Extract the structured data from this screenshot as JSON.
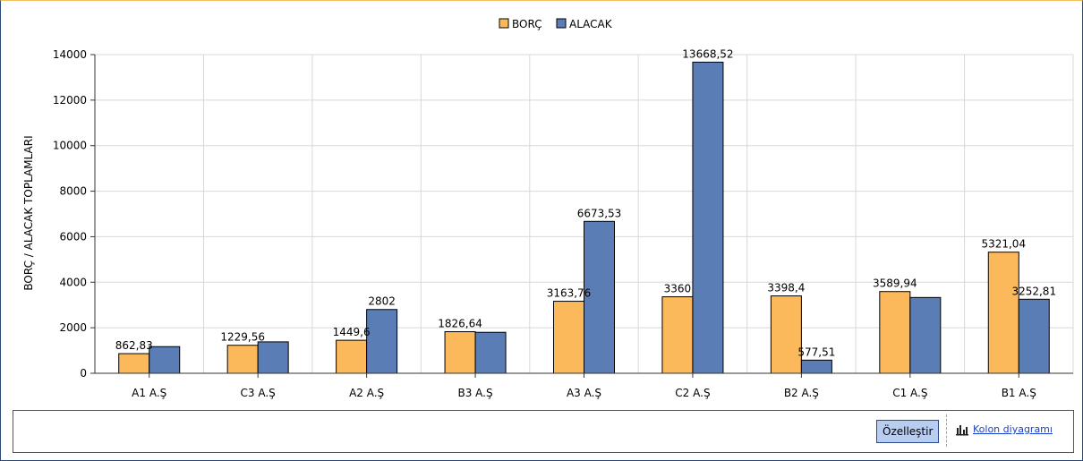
{
  "chart_data": {
    "type": "bar",
    "categories": [
      "A1 A.Ş",
      "C3 A.Ş",
      "A2 A.Ş",
      "B3 A.Ş",
      "A3 A.Ş",
      "C2 A.Ş",
      "B2 A.Ş",
      "C1 A.Ş",
      "B1 A.Ş"
    ],
    "series": [
      {
        "name": "BORÇ",
        "color": "#fbb95c",
        "values": [
          862.83,
          1229.56,
          1449.6,
          1826.64,
          3163.76,
          3360,
          3398.4,
          3589.94,
          5321.04
        ],
        "labels": [
          "862,83",
          "1229,56",
          "1449,6",
          "1826,64",
          "3163,76",
          "3360",
          "3398,4",
          "3589,94",
          "5321,04"
        ]
      },
      {
        "name": "ALACAK",
        "color": "#5b7db5",
        "values": [
          1170,
          1380,
          2802,
          1800,
          6673.53,
          13668.52,
          577.51,
          3330,
          3252.81
        ],
        "labels": [
          "",
          "",
          "2802",
          "",
          "6673,53",
          "13668,52",
          "577,51",
          "",
          "3252,81"
        ]
      }
    ],
    "ylabel": "BORÇ / ALACAK TOPLAMLARI",
    "ylim": [
      0,
      14000
    ],
    "yticks": [
      0,
      2000,
      4000,
      6000,
      8000,
      10000,
      12000,
      14000
    ],
    "grid": true,
    "legend": "top-center"
  },
  "footer": {
    "customize_label": "Özelleştir",
    "chart_type_icon": "column-chart-icon",
    "chart_type_label": "Kolon diyagramı"
  }
}
